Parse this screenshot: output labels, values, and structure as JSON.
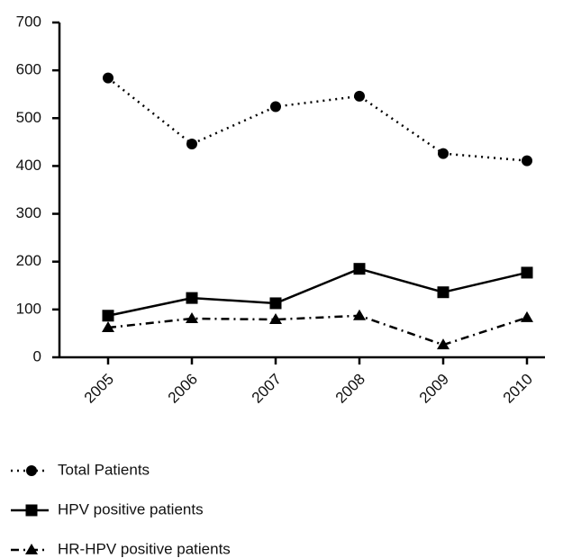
{
  "chart_data": {
    "type": "line",
    "categories": [
      "2005",
      "2006",
      "2007",
      "2008",
      "2009",
      "2010"
    ],
    "series": [
      {
        "name": "Total Patients",
        "color": "#000000",
        "marker": "circle",
        "dash": "dotted",
        "values": [
          584,
          446,
          524,
          546,
          426,
          411
        ]
      },
      {
        "name": "HPV positive patients",
        "color": "#000000",
        "marker": "square",
        "dash": "solid",
        "values": [
          87,
          124,
          113,
          185,
          136,
          177
        ]
      },
      {
        "name": "HR-HPV positive patients",
        "color": "#000000",
        "marker": "triangle",
        "dash": "dashdot",
        "values": [
          62,
          81,
          79,
          87,
          26,
          83
        ]
      }
    ],
    "ylim": [
      0,
      700
    ],
    "yticks": [
      0,
      100,
      200,
      300,
      400,
      500,
      600,
      700
    ],
    "grid": false,
    "legend": "bottom"
  }
}
